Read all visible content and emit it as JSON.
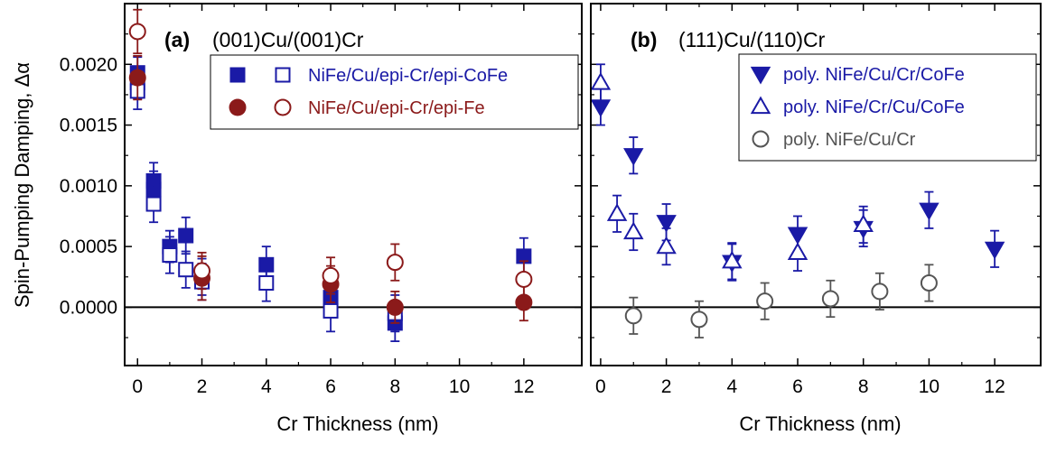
{
  "ylabel": "Spin-Pumping Damping, Δα",
  "colors": {
    "blue": "#1a1aa6",
    "darkred": "#8b1a1a",
    "gray": "#555555"
  },
  "chart_data": [
    {
      "type": "scatter",
      "panel_label": "(a)",
      "title": "(001)Cu/(001)Cr",
      "xlabel": "Cr Thickness (nm)",
      "ylabel": "Spin-Pumping Damping, Δα",
      "xlim": [
        -0.4,
        13.8
      ],
      "ylim": [
        -0.00048,
        0.0025
      ],
      "x_ticks": [
        0,
        2,
        4,
        6,
        8,
        10,
        12
      ],
      "y_ticks": [
        0.0,
        0.0005,
        0.001,
        0.0015,
        0.002
      ],
      "y_tick_labels": [
        "0.0000",
        "0.0005",
        "0.0010",
        "0.0015",
        "0.0020"
      ],
      "zero_line": true,
      "legend_position": "top-right",
      "series": [
        {
          "name": "NiFe/Cu/epi-Cr/epi-CoFe",
          "marker": "square",
          "color": "#1a1aa6",
          "style": "filled",
          "show_in_legend": true,
          "legend_paired": true,
          "points": [
            {
              "x": 0,
              "y": 0.00193,
              "err": 0.00013
            },
            {
              "x": 0,
              "y": 0.00185,
              "err": 0.00013
            },
            {
              "x": 0.5,
              "y": 0.00104,
              "err": 0.00015
            },
            {
              "x": 0.5,
              "y": 0.00097,
              "err": 0.00015
            },
            {
              "x": 1,
              "y": 0.0005,
              "err": 0.00013
            },
            {
              "x": 1.5,
              "y": 0.00059,
              "err": 0.00015
            },
            {
              "x": 2,
              "y": 0.00025,
              "err": 0.00015
            },
            {
              "x": 4,
              "y": 0.00035,
              "err": 0.00015
            },
            {
              "x": 6,
              "y": 8e-05,
              "err": 0.00015
            },
            {
              "x": 8,
              "y": -0.00013,
              "err": 0.00015
            },
            {
              "x": 12,
              "y": 0.00042,
              "err": 0.00015
            }
          ]
        },
        {
          "name": "NiFe/Cu/epi-Cr/epi-CoFe",
          "marker": "square",
          "color": "#1a1aa6",
          "style": "open",
          "show_in_legend": false,
          "points": [
            {
              "x": 0,
              "y": 0.00178,
              "err": 0.00015
            },
            {
              "x": 0.5,
              "y": 0.00085,
              "err": 0.00015
            },
            {
              "x": 1,
              "y": 0.00043,
              "err": 0.00015
            },
            {
              "x": 1.5,
              "y": 0.00031,
              "err": 0.00015
            },
            {
              "x": 2,
              "y": 0.00021,
              "err": 0.00015
            },
            {
              "x": 4,
              "y": 0.0002,
              "err": 0.00015
            },
            {
              "x": 6,
              "y": -3e-05,
              "err": 0.00017
            },
            {
              "x": 8,
              "y": -5e-05,
              "err": 0.00015
            }
          ]
        },
        {
          "name": "NiFe/Cu/epi-Cr/epi-Fe",
          "marker": "circle",
          "color": "#8b1a1a",
          "style": "filled",
          "show_in_legend": true,
          "legend_paired": true,
          "points": [
            {
              "x": 0,
              "y": 0.00189,
              "err": 0.00018
            },
            {
              "x": 2,
              "y": 0.00024,
              "err": 0.00018
            },
            {
              "x": 6,
              "y": 0.00019,
              "err": 0.00015
            },
            {
              "x": 8,
              "y": 0.0,
              "err": 0.00013
            },
            {
              "x": 12,
              "y": 4e-05,
              "err": 0.00015
            }
          ]
        },
        {
          "name": "NiFe/Cu/epi-Cr/epi-Fe",
          "marker": "circle",
          "color": "#8b1a1a",
          "style": "open",
          "show_in_legend": false,
          "points": [
            {
              "x": 0,
              "y": 0.00227,
              "err": 0.00018
            },
            {
              "x": 2,
              "y": 0.0003,
              "err": 0.00015
            },
            {
              "x": 6,
              "y": 0.00026,
              "err": 0.00015
            },
            {
              "x": 8,
              "y": 0.00037,
              "err": 0.00015
            },
            {
              "x": 12,
              "y": 0.00023,
              "err": 0.00015
            }
          ]
        }
      ]
    },
    {
      "type": "scatter",
      "panel_label": "(b)",
      "title": "(111)Cu/(110)Cr",
      "xlabel": "Cr Thickness (nm)",
      "xlim": [
        -0.3,
        13.4
      ],
      "ylim": [
        -0.00048,
        0.0025
      ],
      "x_ticks": [
        0,
        2,
        4,
        6,
        8,
        10,
        12
      ],
      "zero_line": true,
      "legend_position": "top-right",
      "series": [
        {
          "name": "poly. NiFe/Cu/Cr/CoFe",
          "marker": "triangle-down",
          "color": "#1a1aa6",
          "style": "filled",
          "show_in_legend": true,
          "points": [
            {
              "x": 0,
              "y": 0.00165,
              "err": 0.00015
            },
            {
              "x": 1,
              "y": 0.00125,
              "err": 0.00015
            },
            {
              "x": 2,
              "y": 0.0007,
              "err": 0.00015
            },
            {
              "x": 4,
              "y": 0.00037,
              "err": 0.00015
            },
            {
              "x": 6,
              "y": 0.0006,
              "err": 0.00015
            },
            {
              "x": 8,
              "y": 0.00065,
              "err": 0.00015
            },
            {
              "x": 10,
              "y": 0.0008,
              "err": 0.00015
            },
            {
              "x": 12,
              "y": 0.00048,
              "err": 0.00015
            }
          ]
        },
        {
          "name": "poly. NiFe/Cr/Cu/CoFe",
          "marker": "triangle-up",
          "color": "#1a1aa6",
          "style": "open",
          "show_in_legend": true,
          "points": [
            {
              "x": 0,
              "y": 0.00185,
              "err": 0.00015
            },
            {
              "x": 0.5,
              "y": 0.00077,
              "err": 0.00015
            },
            {
              "x": 1,
              "y": 0.00062,
              "err": 0.00015
            },
            {
              "x": 2,
              "y": 0.0005,
              "err": 0.00015
            },
            {
              "x": 4,
              "y": 0.00038,
              "err": 0.00015
            },
            {
              "x": 6,
              "y": 0.00045,
              "err": 0.00015
            },
            {
              "x": 8,
              "y": 0.00068,
              "err": 0.00015
            }
          ]
        },
        {
          "name": "poly. NiFe/Cu/Cr",
          "marker": "circle",
          "color": "#555555",
          "style": "open",
          "show_in_legend": true,
          "points": [
            {
              "x": 1,
              "y": -7e-05,
              "err": 0.00015
            },
            {
              "x": 3,
              "y": -0.0001,
              "err": 0.00015
            },
            {
              "x": 5,
              "y": 5e-05,
              "err": 0.00015
            },
            {
              "x": 7,
              "y": 7e-05,
              "err": 0.00015
            },
            {
              "x": 8.5,
              "y": 0.00013,
              "err": 0.00015
            },
            {
              "x": 10,
              "y": 0.0002,
              "err": 0.00015
            }
          ]
        }
      ]
    }
  ]
}
